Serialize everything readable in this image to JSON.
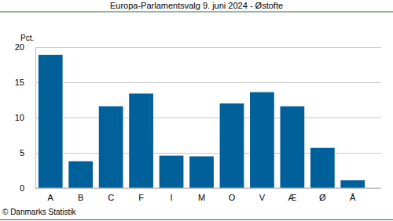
{
  "chart_data": {
    "type": "bar",
    "title": "Europa-Parlamentsvalg 9. juni 2024 - Østofte",
    "y_label": "Pct.",
    "footer": "© Danmarks Statistik",
    "categories": [
      "A",
      "B",
      "C",
      "F",
      "I",
      "M",
      "O",
      "V",
      "Æ",
      "Ø",
      "Å"
    ],
    "values": [
      18.9,
      3.8,
      11.6,
      13.4,
      4.6,
      4.5,
      12.0,
      13.6,
      11.6,
      5.7,
      1.1
    ],
    "color": "#00609a",
    "ylim": [
      0,
      20
    ],
    "yticks": [
      0,
      5,
      10,
      15,
      20
    ],
    "grid": true
  }
}
